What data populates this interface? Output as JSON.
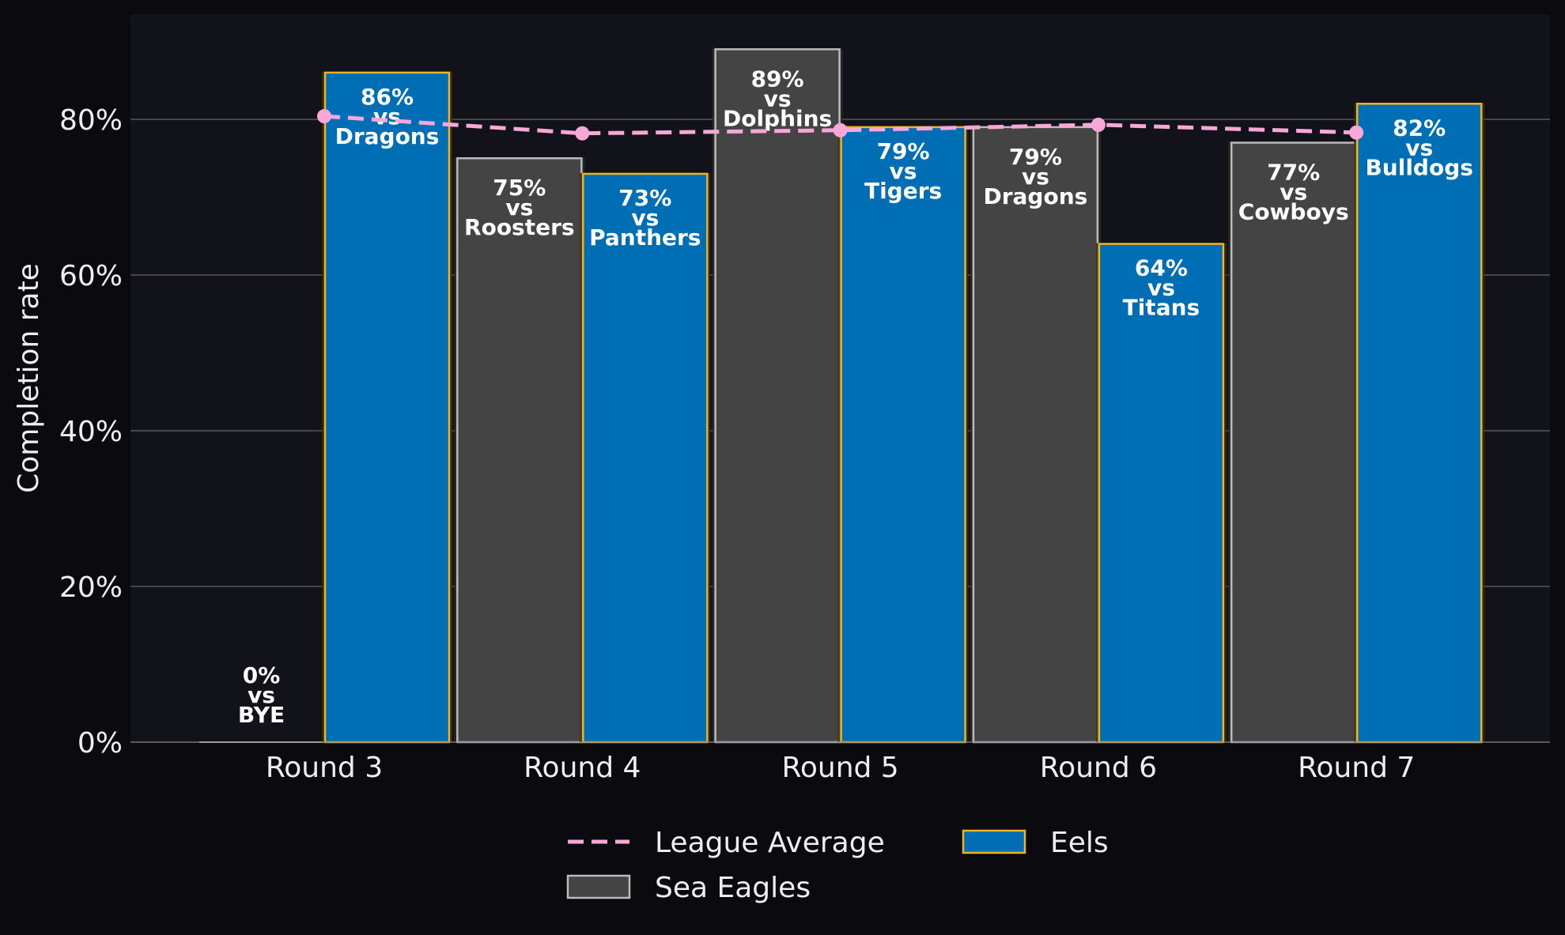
{
  "chart_data": {
    "type": "bar",
    "ylabel": "Completion rate",
    "xlabel": "",
    "ylim": [
      0,
      0.935
    ],
    "yticks": [
      0,
      0.2,
      0.4,
      0.6,
      0.8
    ],
    "ytick_labels": [
      "0%",
      "20%",
      "40%",
      "60%",
      "80%"
    ],
    "grid": "horizontal",
    "categories": [
      "Round 3",
      "Round 4",
      "Round 5",
      "Round 6",
      "Round 7"
    ],
    "series": [
      {
        "name": "Sea Eagles",
        "color": "#444444",
        "edge": "#bbbbbb",
        "values": [
          0.0,
          0.75,
          0.89,
          0.79,
          0.77
        ],
        "labels": [
          [
            "0%",
            "vs",
            "BYE"
          ],
          [
            "75%",
            "vs",
            "Roosters"
          ],
          [
            "89%",
            "vs",
            "Dolphins"
          ],
          [
            "79%",
            "vs",
            "Dragons"
          ],
          [
            "77%",
            "vs",
            "Cowboys"
          ]
        ]
      },
      {
        "name": "Eels",
        "color": "#006eb5",
        "edge": "#f0b323",
        "values": [
          0.86,
          0.73,
          0.79,
          0.64,
          0.82
        ],
        "labels": [
          [
            "86%",
            "vs",
            "Dragons"
          ],
          [
            "73%",
            "vs",
            "Panthers"
          ],
          [
            "79%",
            "vs",
            "Tigers"
          ],
          [
            "64%",
            "vs",
            "Titans"
          ],
          [
            "82%",
            "vs",
            "Bulldogs"
          ]
        ]
      }
    ],
    "reference_line": {
      "name": "League Average",
      "color": "#f7a8d8",
      "style": "dashed",
      "values": [
        0.804,
        0.782,
        0.786,
        0.793,
        0.783
      ]
    },
    "legend": {
      "placement": "bottom-center",
      "order": [
        "League Average",
        "Eels",
        "Sea Eagles"
      ]
    },
    "colors": {
      "background": "#0b0b0f",
      "plot_background": "#12131a",
      "grid": "#666666",
      "text": "#eeeeee"
    }
  }
}
